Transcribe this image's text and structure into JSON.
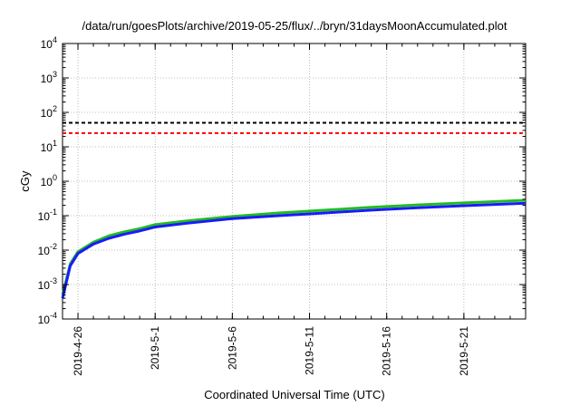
{
  "chart_data": {
    "type": "line",
    "title": "/data/run/goesPlots/archive/2019-05-25/flux/../bryn/31daysMoonAccumulated.plot",
    "xlabel": "Coordinated Universal Time (UTC)",
    "ylabel": "cGy",
    "yscale": "log",
    "ylim": [
      0.0001,
      10000
    ],
    "xlim": [
      "2019-04-25",
      "2019-05-25"
    ],
    "x_ticks": [
      "2019-4-26",
      "2019-5-1",
      "2019-5-6",
      "2019-5-11",
      "2019-5-16",
      "2019-5-21"
    ],
    "y_ticks": [
      {
        "base": "10",
        "exp": "-4"
      },
      {
        "base": "10",
        "exp": "-3"
      },
      {
        "base": "10",
        "exp": "-2"
      },
      {
        "base": "10",
        "exp": "-1"
      },
      {
        "base": "10",
        "exp": "0"
      },
      {
        "base": "10",
        "exp": "1"
      },
      {
        "base": "10",
        "exp": "2"
      },
      {
        "base": "10",
        "exp": "3"
      },
      {
        "base": "10",
        "exp": "4"
      }
    ],
    "grid": true,
    "reference_lines": [
      {
        "y": 50,
        "color": "#000000",
        "style": "dashed"
      },
      {
        "y": 25,
        "color": "#ff0000",
        "style": "dashed"
      }
    ],
    "series": [
      {
        "color": "#22bb22",
        "x": [
          "2019-04-25",
          "2019-04-25T12:00",
          "2019-04-26",
          "2019-04-27",
          "2019-04-28",
          "2019-04-29",
          "2019-04-30",
          "2019-05-01",
          "2019-05-03",
          "2019-05-06",
          "2019-05-09",
          "2019-05-12",
          "2019-05-15",
          "2019-05-18",
          "2019-05-21",
          "2019-05-25"
        ],
        "values": [
          0.0005,
          0.004,
          0.009,
          0.017,
          0.026,
          0.034,
          0.042,
          0.055,
          0.07,
          0.095,
          0.12,
          0.145,
          0.175,
          0.205,
          0.235,
          0.28
        ]
      },
      {
        "color": "#1a1aff",
        "x": [
          "2019-04-25",
          "2019-04-25T12:00",
          "2019-04-26",
          "2019-04-27",
          "2019-04-28",
          "2019-04-29",
          "2019-04-30",
          "2019-05-01",
          "2019-05-03",
          "2019-05-06",
          "2019-05-09",
          "2019-05-12",
          "2019-05-15",
          "2019-05-18",
          "2019-05-21",
          "2019-05-25"
        ],
        "values": [
          0.0004,
          0.0035,
          0.008,
          0.015,
          0.022,
          0.029,
          0.036,
          0.047,
          0.06,
          0.082,
          0.1,
          0.12,
          0.145,
          0.17,
          0.195,
          0.23
        ]
      }
    ]
  }
}
